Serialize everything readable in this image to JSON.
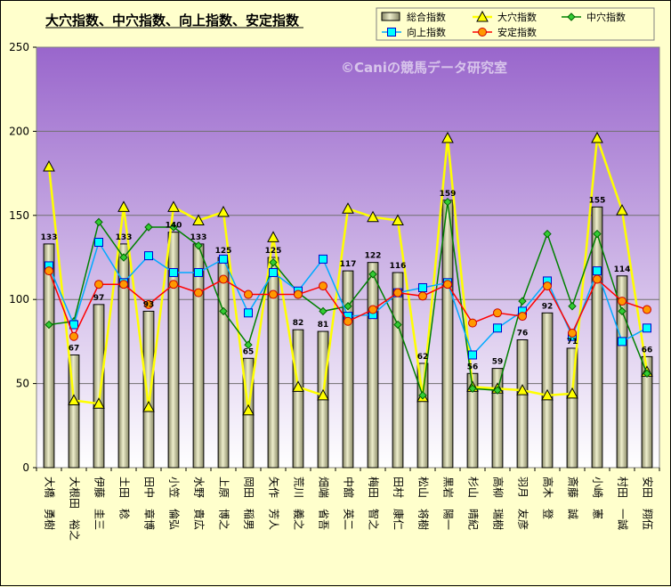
{
  "colors": {
    "background": "#ffffcc",
    "plot_top": "#9966cc",
    "plot_bottom": "#ffffff",
    "bar_light": "#eeeecc",
    "bar_dark": "#888866",
    "ana": "#ffff00",
    "chuketsu": "#008000",
    "kojo": "#00aaff",
    "antei": "#ff0000"
  },
  "watermark": "©Caniの競馬データ研究室",
  "chart_data": {
    "type": "bar",
    "title": "大穴指数、中穴指数、向上指数、安定指数",
    "ylim": [
      0,
      250
    ],
    "yticks": [
      0,
      50,
      100,
      150,
      200,
      250
    ],
    "grid": true,
    "legend": "top-right",
    "categories": [
      "大橋　勇樹",
      "大根田　裕之",
      "伊藤　圭三",
      "土田　稔",
      "田中　章博",
      "小笠　倫弘",
      "水野　貴広",
      "上原　博之",
      "岡田　稲男",
      "矢作　芳人",
      "荒川　義之",
      "畑端　省吾",
      "中舘　英二",
      "梅田　智之",
      "田村　康仁",
      "松山　将樹",
      "黒岩　陽一",
      "杉山　晴紀",
      "高柳　瑞樹",
      "羽月　友彦",
      "高木　登",
      "斎藤　誠",
      "小崎　憲",
      "村田　一誠",
      "安田　翔伍"
    ],
    "series": [
      {
        "name": "総合指数",
        "kind": "bar",
        "values": [
          133,
          67,
          97,
          133,
          93,
          140,
          133,
          125,
          65,
          125,
          82,
          81,
          117,
          122,
          116,
          62,
          159,
          56,
          59,
          76,
          92,
          71,
          155,
          114,
          66
        ]
      },
      {
        "name": "大穴指数",
        "kind": "line",
        "marker": "triangle",
        "values": [
          179,
          40,
          38,
          155,
          36,
          155,
          147,
          152,
          34,
          137,
          48,
          43,
          154,
          149,
          147,
          42,
          196,
          48,
          47,
          46,
          43,
          44,
          196,
          153,
          57
        ]
      },
      {
        "name": "中穴指数",
        "kind": "line",
        "marker": "diamond",
        "values": [
          85,
          87,
          146,
          125,
          143,
          143,
          132,
          93,
          73,
          122,
          104,
          93,
          96,
          115,
          85,
          43,
          158,
          47,
          46,
          99,
          139,
          96,
          139,
          93,
          56
        ]
      },
      {
        "name": "向上指数",
        "kind": "line",
        "marker": "square",
        "values": [
          120,
          85,
          134,
          110,
          126,
          116,
          116,
          124,
          92,
          116,
          105,
          124,
          90,
          91,
          104,
          107,
          110,
          67,
          83,
          93,
          111,
          78,
          117,
          75,
          83
        ]
      },
      {
        "name": "安定指数",
        "kind": "line",
        "marker": "circle",
        "values": [
          117,
          78,
          109,
          109,
          97,
          109,
          104,
          112,
          103,
          103,
          103,
          108,
          87,
          94,
          104,
          102,
          109,
          86,
          92,
          90,
          108,
          80,
          112,
          99,
          94
        ]
      }
    ]
  }
}
